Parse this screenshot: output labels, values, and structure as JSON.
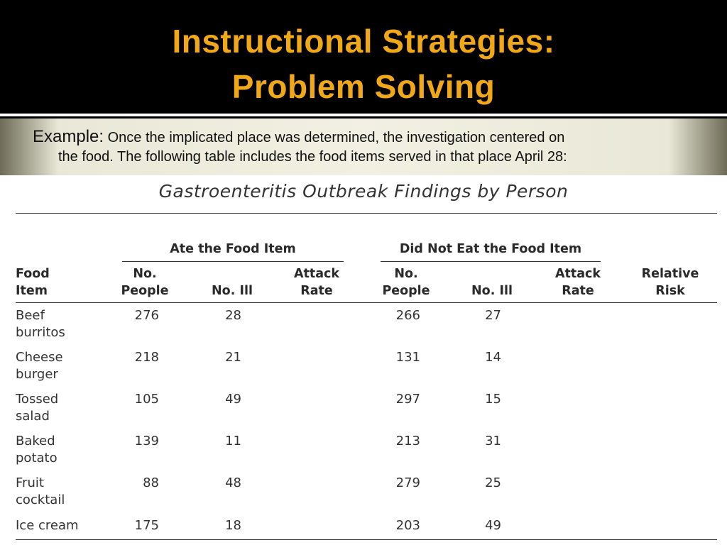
{
  "slide": {
    "title_line1": "Instructional Strategies:",
    "title_line2": "Problem Solving",
    "example_lead": "Example:",
    "example_text_line1": "Once the implicated place was determined, the investigation centered on",
    "example_text_line2": "the food. The following table includes the food items served in that place April 28:"
  },
  "table": {
    "title": "Gastroenteritis Outbreak Findings by Person",
    "group_ate": "Ate the Food Item",
    "group_not": "Did Not Eat the Food Item",
    "headers": {
      "food_1": "Food",
      "food_2": "Item",
      "people_1": "No.",
      "people_2": "People",
      "ill": "No. Ill",
      "attack_1": "Attack",
      "attack_2": "Rate",
      "rr_1": "Relative",
      "rr_2": "Risk"
    },
    "rows": [
      {
        "food_1": "Beef",
        "food_2": "burritos",
        "ate_people": "276",
        "ate_ill": "28",
        "not_people": "266",
        "not_ill": "27"
      },
      {
        "food_1": "Cheese",
        "food_2": "burger",
        "ate_people": "218",
        "ate_ill": "21",
        "not_people": "131",
        "not_ill": "14"
      },
      {
        "food_1": "Tossed",
        "food_2": "salad",
        "ate_people": "105",
        "ate_ill": "49",
        "not_people": "297",
        "not_ill": "15"
      },
      {
        "food_1": "Baked",
        "food_2": "potato",
        "ate_people": "139",
        "ate_ill": "11",
        "not_people": "213",
        "not_ill": "31"
      },
      {
        "food_1": "Fruit",
        "food_2": "cocktail",
        "ate_people": "88",
        "ate_ill": "48",
        "not_people": "279",
        "not_ill": "25"
      },
      {
        "food_1": "Ice cream",
        "food_2": "",
        "ate_people": "175",
        "ate_ill": "18",
        "not_people": "203",
        "not_ill": "49"
      }
    ]
  }
}
